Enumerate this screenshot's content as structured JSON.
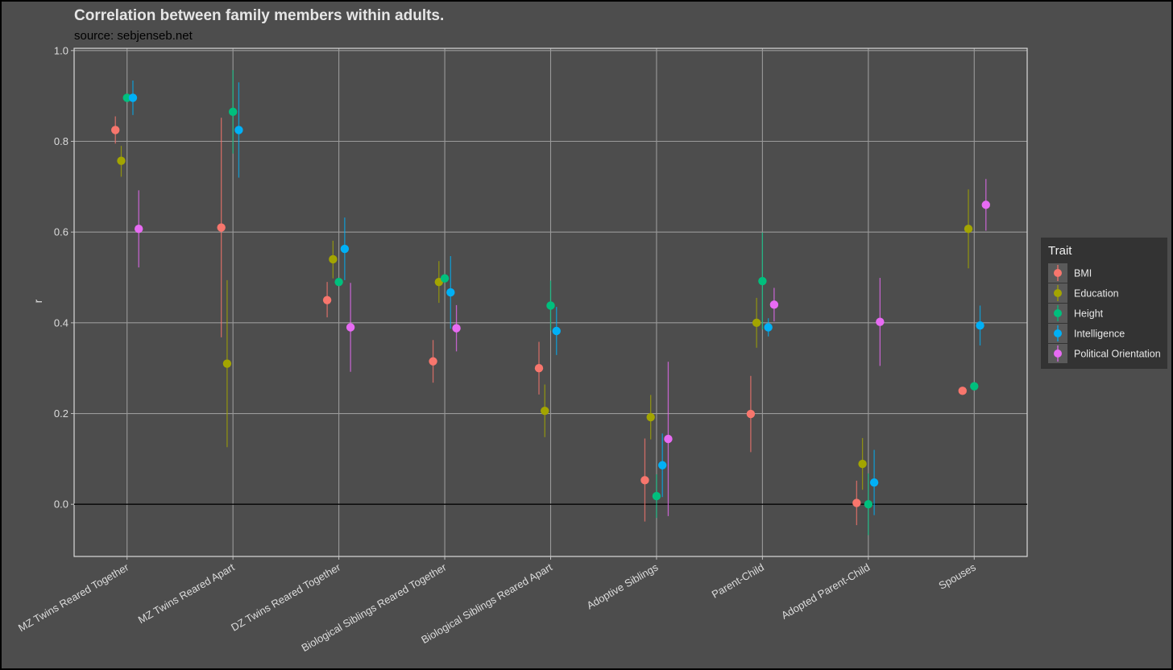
{
  "chart_data": {
    "type": "scatter",
    "title": "Correlation between family members within adults.",
    "subtitle": "source: sebjenseb.net",
    "xlabel": "",
    "ylabel": "r",
    "ylim": [
      -0.115,
      1.005
    ],
    "yticks": [
      "0.0",
      "0.2",
      "0.4",
      "0.6",
      "0.8",
      "1.0"
    ],
    "grid": true,
    "legend_title": "Trait",
    "legend_position": "right",
    "categories": [
      "MZ Twins Reared Together",
      "MZ Twins Reared Apart",
      "DZ Twins Reared Together",
      "Biological Siblings Reared Together",
      "Biological Siblings Reared Apart",
      "Adoptive Siblings",
      "Parent-Child",
      "Adopted Parent-Child",
      "Spouses"
    ],
    "series": [
      {
        "name": "BMI",
        "color": "#f8766d",
        "points": [
          {
            "cat": 0,
            "y": 0.825,
            "lo": 0.795,
            "hi": 0.855
          },
          {
            "cat": 1,
            "y": 0.61,
            "lo": 0.368,
            "hi": 0.852
          },
          {
            "cat": 2,
            "y": 0.45,
            "lo": 0.412,
            "hi": 0.49
          },
          {
            "cat": 3,
            "y": 0.315,
            "lo": 0.268,
            "hi": 0.362
          },
          {
            "cat": 4,
            "y": 0.3,
            "lo": 0.242,
            "hi": 0.358
          },
          {
            "cat": 5,
            "y": 0.053,
            "lo": -0.038,
            "hi": 0.145
          },
          {
            "cat": 6,
            "y": 0.199,
            "lo": 0.115,
            "hi": 0.283
          },
          {
            "cat": 7,
            "y": 0.003,
            "lo": -0.046,
            "hi": 0.052
          },
          {
            "cat": 8,
            "y": 0.25,
            "lo": 0.25,
            "hi": 0.25
          }
        ]
      },
      {
        "name": "Education",
        "color": "#a3a500",
        "points": [
          {
            "cat": 0,
            "y": 0.757,
            "lo": 0.722,
            "hi": 0.79
          },
          {
            "cat": 1,
            "y": 0.31,
            "lo": 0.126,
            "hi": 0.494
          },
          {
            "cat": 2,
            "y": 0.54,
            "lo": 0.498,
            "hi": 0.581
          },
          {
            "cat": 3,
            "y": 0.49,
            "lo": 0.444,
            "hi": 0.536
          },
          {
            "cat": 4,
            "y": 0.206,
            "lo": 0.148,
            "hi": 0.264
          },
          {
            "cat": 5,
            "y": 0.192,
            "lo": 0.143,
            "hi": 0.241
          },
          {
            "cat": 6,
            "y": 0.4,
            "lo": 0.345,
            "hi": 0.455
          },
          {
            "cat": 7,
            "y": 0.089,
            "lo": 0.032,
            "hi": 0.146
          },
          {
            "cat": 8,
            "y": 0.607,
            "lo": 0.52,
            "hi": 0.694
          }
        ]
      },
      {
        "name": "Height",
        "color": "#00bf7d",
        "points": [
          {
            "cat": 0,
            "y": 0.896,
            "lo": 0.896,
            "hi": 0.896
          },
          {
            "cat": 1,
            "y": 0.865,
            "lo": 0.773,
            "hi": 0.957
          },
          {
            "cat": 2,
            "y": 0.49,
            "lo": 0.49,
            "hi": 0.49
          },
          {
            "cat": 3,
            "y": 0.498,
            "lo": 0.498,
            "hi": 0.498
          },
          {
            "cat": 4,
            "y": 0.438,
            "lo": 0.383,
            "hi": 0.493
          },
          {
            "cat": 5,
            "y": 0.018,
            "lo": -0.03,
            "hi": 0.066
          },
          {
            "cat": 6,
            "y": 0.492,
            "lo": 0.385,
            "hi": 0.599
          },
          {
            "cat": 7,
            "y": 0.0,
            "lo": -0.068,
            "hi": 0.068
          },
          {
            "cat": 8,
            "y": 0.26,
            "lo": 0.26,
            "hi": 0.26
          }
        ]
      },
      {
        "name": "Intelligence",
        "color": "#00b0f6",
        "points": [
          {
            "cat": 0,
            "y": 0.896,
            "lo": 0.858,
            "hi": 0.934
          },
          {
            "cat": 1,
            "y": 0.825,
            "lo": 0.72,
            "hi": 0.93
          },
          {
            "cat": 2,
            "y": 0.563,
            "lo": 0.494,
            "hi": 0.632
          },
          {
            "cat": 3,
            "y": 0.467,
            "lo": 0.387,
            "hi": 0.547
          },
          {
            "cat": 4,
            "y": 0.382,
            "lo": 0.329,
            "hi": 0.435
          },
          {
            "cat": 5,
            "y": 0.086,
            "lo": 0.016,
            "hi": 0.156
          },
          {
            "cat": 6,
            "y": 0.39,
            "lo": 0.37,
            "hi": 0.41
          },
          {
            "cat": 7,
            "y": 0.048,
            "lo": -0.024,
            "hi": 0.12
          },
          {
            "cat": 8,
            "y": 0.394,
            "lo": 0.35,
            "hi": 0.438
          }
        ]
      },
      {
        "name": "Political Orientation",
        "color": "#e76bf3",
        "points": [
          {
            "cat": 0,
            "y": 0.607,
            "lo": 0.522,
            "hi": 0.692
          },
          {
            "cat": 2,
            "y": 0.39,
            "lo": 0.292,
            "hi": 0.488
          },
          {
            "cat": 3,
            "y": 0.388,
            "lo": 0.337,
            "hi": 0.439
          },
          {
            "cat": 5,
            "y": 0.144,
            "lo": -0.026,
            "hi": 0.314
          },
          {
            "cat": 6,
            "y": 0.44,
            "lo": 0.403,
            "hi": 0.477
          },
          {
            "cat": 7,
            "y": 0.402,
            "lo": 0.305,
            "hi": 0.499
          },
          {
            "cat": 8,
            "y": 0.66,
            "lo": 0.603,
            "hi": 0.717
          }
        ]
      }
    ]
  }
}
